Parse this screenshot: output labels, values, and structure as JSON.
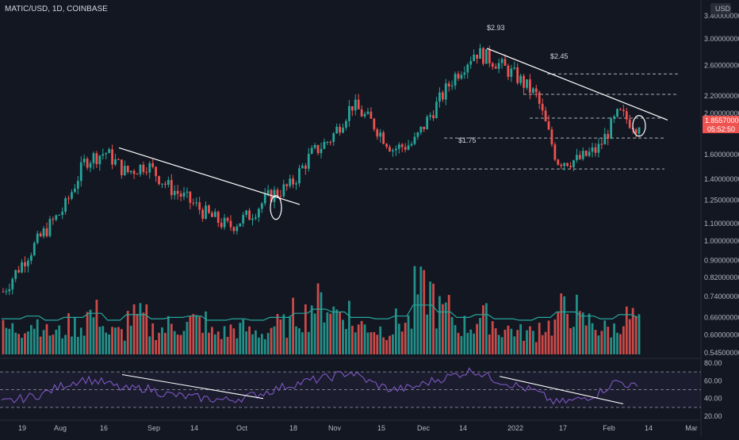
{
  "header": {
    "symbol": "MATIC/USD, 1D, COINBASE"
  },
  "price_axis": {
    "currency_button": "USD",
    "labels": [
      "3.40000000",
      "3.00000000",
      "2.60000000",
      "2.20000000",
      "2.00000000",
      "1.60000000",
      "1.40000000",
      "1.25000000",
      "1.10000000",
      "1.00000000",
      "0.90000000",
      "0.82000000",
      "0.74000000",
      "0.66000000",
      "0.60000000",
      "0.54500000"
    ],
    "last_price": "1.85570000",
    "countdown": "05:52:50"
  },
  "rsi_axis": {
    "labels": [
      "80.00",
      "60.00",
      "40.00",
      "20.00"
    ]
  },
  "time_axis": {
    "labels": [
      "19",
      "Aug",
      "16",
      "Sep",
      "14",
      "Oct",
      "18",
      "Nov",
      "15",
      "Dec",
      "14",
      "2022",
      "17",
      "Feb",
      "14",
      "Mar"
    ]
  },
  "annotations": {
    "high_1": "$2.93",
    "high_2": "$2.45",
    "support": "$1.75"
  },
  "colors": {
    "up": "#26a69a",
    "down": "#ef5350",
    "background": "#131722",
    "ma": "#26a69a",
    "rsi": "#7e57c2",
    "trendline": "#ffffff",
    "badge": "#ef5350"
  },
  "chart_data": {
    "type": "candlestick",
    "title": "MATIC/USD, 1D, COINBASE",
    "scale": "log",
    "ylim": [
      0.545,
      3.4
    ],
    "price_series": {
      "name": "MATIC/USD",
      "x": [
        "2021-07-12",
        "2021-07-19",
        "2021-07-26",
        "2021-08-02",
        "2021-08-09",
        "2021-08-16",
        "2021-08-23",
        "2021-08-30",
        "2021-09-06",
        "2021-09-13",
        "2021-09-20",
        "2021-09-27",
        "2021-10-04",
        "2021-10-11",
        "2021-10-18",
        "2021-10-25",
        "2021-11-01",
        "2021-11-08",
        "2021-11-15",
        "2021-11-22",
        "2021-11-29",
        "2021-12-06",
        "2021-12-13",
        "2021-12-20",
        "2021-12-27",
        "2022-01-03",
        "2022-01-10",
        "2022-01-17",
        "2022-01-24",
        "2022-01-31",
        "2022-02-07",
        "2022-02-11"
      ],
      "close": [
        0.76,
        0.9,
        1.05,
        1.2,
        1.55,
        1.62,
        1.45,
        1.52,
        1.35,
        1.25,
        1.15,
        1.08,
        1.15,
        1.28,
        1.35,
        1.6,
        1.75,
        2.1,
        1.9,
        1.65,
        1.7,
        2.05,
        2.45,
        2.8,
        2.65,
        2.45,
        2.2,
        1.55,
        1.55,
        1.65,
        2.0,
        1.8557
      ]
    },
    "levels": [
      1.75,
      1.48,
      1.95,
      2.22,
      2.48
    ],
    "annotated_highs": [
      2.93,
      2.45
    ],
    "volume": {
      "relative": [
        0.35,
        0.45,
        0.3,
        0.4,
        0.55,
        0.3,
        0.5,
        0.35,
        0.4,
        0.45,
        0.3,
        0.35,
        0.3,
        0.4,
        0.55,
        0.7,
        0.6,
        0.4,
        0.35,
        0.45,
        0.85,
        0.6,
        0.4,
        0.5,
        0.35,
        0.3,
        0.4,
        0.6,
        0.45,
        0.35,
        0.5,
        0.4
      ]
    },
    "rsi": {
      "levels": [
        70,
        50,
        30
      ],
      "ylim": [
        20,
        80
      ],
      "values": [
        35,
        40,
        45,
        55,
        62,
        58,
        50,
        52,
        45,
        42,
        40,
        38,
        42,
        48,
        55,
        60,
        64,
        70,
        58,
        50,
        52,
        60,
        66,
        72,
        62,
        55,
        48,
        35,
        38,
        45,
        60,
        52
      ]
    }
  }
}
